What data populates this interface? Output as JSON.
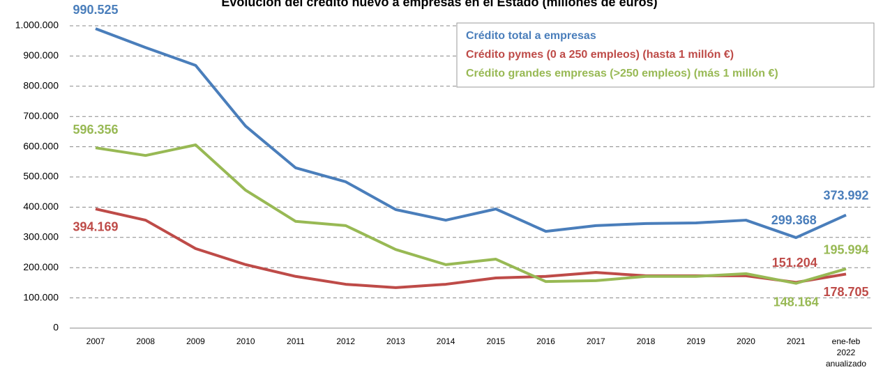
{
  "chart_data": {
    "type": "line",
    "title": "Evolución del crédito nuevo a empresas en el Estado (millones de euros)",
    "categories": [
      "2007",
      "2008",
      "2009",
      "2010",
      "2011",
      "2012",
      "2013",
      "2014",
      "2015",
      "2016",
      "2017",
      "2018",
      "2019",
      "2020",
      "2021",
      "ene-feb 2022 anualizado"
    ],
    "series": [
      {
        "name": "Crédito total a empresas",
        "color": "#4a7ebb",
        "values": [
          990525,
          928000,
          869000,
          668000,
          530000,
          484000,
          392000,
          357000,
          394000,
          320000,
          339000,
          346000,
          348000,
          357000,
          299368,
          373992
        ],
        "value_labels": [
          "990.525",
          null,
          null,
          null,
          null,
          null,
          null,
          null,
          null,
          null,
          null,
          null,
          null,
          null,
          "299.368",
          "373.992"
        ]
      },
      {
        "name": "Crédito pymes (0 a 250 empleos) (hasta 1 millón €)",
        "color": "#be4b48",
        "values": [
          394169,
          357000,
          263000,
          210000,
          171000,
          145000,
          134000,
          145000,
          166000,
          171000,
          184000,
          173000,
          173000,
          173000,
          151204,
          178705
        ],
        "value_labels": [
          "394.169",
          null,
          null,
          null,
          null,
          null,
          null,
          null,
          null,
          null,
          null,
          null,
          null,
          null,
          "151.204",
          "178.705"
        ]
      },
      {
        "name": "Crédito grandes empresas (>250 empleos) (más 1 millón €)",
        "color": "#98b954",
        "values": [
          596356,
          571000,
          606000,
          456000,
          353000,
          339000,
          260000,
          210000,
          228000,
          154000,
          157000,
          171000,
          171000,
          180000,
          148164,
          195994
        ],
        "value_labels": [
          "596.356",
          null,
          null,
          null,
          null,
          null,
          null,
          null,
          null,
          null,
          null,
          null,
          null,
          null,
          "148.164",
          "195.994"
        ]
      }
    ],
    "ylim": [
      0,
      1000000
    ],
    "yticks": [
      0,
      {
        "value": 100000,
        "label": "100.000"
      },
      {
        "value": 200000,
        "label": "200.000"
      },
      {
        "value": 300000,
        "label": "300.000"
      },
      {
        "value": 400000,
        "label": "400.000"
      },
      {
        "value": 500000,
        "label": "500.000"
      },
      {
        "value": 600000,
        "label": "600.000"
      },
      {
        "value": 700000,
        "label": "700.000"
      },
      {
        "value": 800000,
        "label": "800.000"
      },
      {
        "value": 900000,
        "label": "900.000"
      },
      {
        "value": 1000000,
        "label": "1.000.000"
      }
    ],
    "grid": true,
    "legend": "upper right"
  }
}
